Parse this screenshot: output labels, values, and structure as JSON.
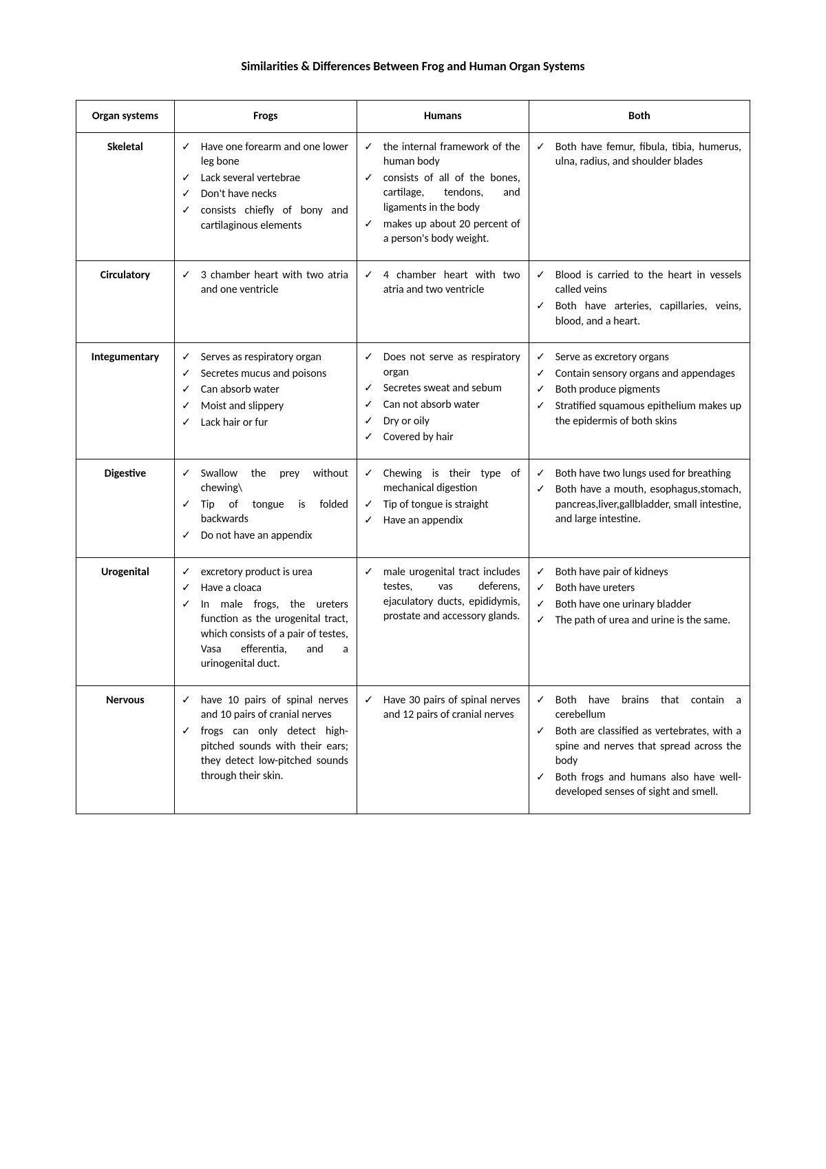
{
  "title": "Similarities & Differences Between Frog and Human Organ Systems",
  "columns": [
    "Organ systems",
    "Frogs",
    "Humans",
    "Both"
  ],
  "check_glyph": "✓",
  "rows": [
    {
      "system": "Skeletal",
      "frogs": [
        "Have one forearm and one lower leg bone",
        "Lack several vertebrae",
        " Don't have necks",
        "consists chiefly of bony and cartilaginous elements"
      ],
      "humans": [
        "the internal framework of the human body",
        "consists of all of the bones, cartilage, tendons, and ligaments in the body",
        "makes up about 20 percent of a person's body weight."
      ],
      "both": [
        "Both have femur, fibula, tibia, humerus, ulna, radius, and shoulder blades"
      ]
    },
    {
      "system": "Circulatory",
      "frogs": [
        "3 chamber heart with two atria and one ventricle"
      ],
      "humans": [
        "4 chamber heart with two atria and two ventricle"
      ],
      "both": [
        "Blood is carried to the heart in vessels called veins",
        "Both have arteries, capillaries, veins, blood, and a heart."
      ]
    },
    {
      "system": "Integumentary",
      "frogs": [
        "Serves as respiratory organ",
        "Secretes mucus and poisons",
        "Can absorb water",
        "Moist and slippery",
        "Lack hair or fur"
      ],
      "humans": [
        "Does not serve as respiratory organ",
        "Secretes sweat and sebum",
        "Can not absorb water",
        "Dry or oily",
        "Covered by hair"
      ],
      "both": [
        "Serve as excretory organs",
        "Contain sensory organs and appendages",
        " Both produce pigments",
        "Stratified squamous epithelium makes up the epidermis of both skins"
      ]
    },
    {
      "system": "Digestive",
      "frogs": [
        "Swallow the prey without chewing\\",
        "Tip of tongue is folded backwards",
        "Do not have an appendix"
      ],
      "humans": [
        "Chewing is their type of mechanical digestion",
        "Tip of tongue is straight",
        "Have an appendix"
      ],
      "both": [
        "Both have two lungs used for breathing",
        "Both have a mouth, esophagus,stomach, pancreas,liver,gallbladder, small intestine, and large intestine."
      ]
    },
    {
      "system": "Urogenital",
      "frogs": [
        "excretory product is urea",
        "Have a cloaca",
        "In male frogs, the ureters function as the urogenital tract, which consists of a pair of testes, Vasa efferentia, and a urinogenital duct."
      ],
      "humans": [
        "male urogenital tract includes testes, vas deferens, ejaculatory ducts, epididymis, prostate and accessory glands."
      ],
      "both": [
        "Both have pair of kidneys",
        "Both have ureters",
        "Both have one urinary bladder",
        "The path of urea and urine is the same."
      ]
    },
    {
      "system": "Nervous",
      "frogs": [
        "have 10 pairs of spinal nerves and 10 pairs of cranial nerves",
        "frogs can only detect high-pitched sounds with their ears; they detect low-pitched sounds through their skin."
      ],
      "humans": [
        "Have 30 pairs of spinal nerves and 12 pairs of cranial nerves"
      ],
      "both": [
        "Both have brains that contain a cerebellum",
        "Both are classified as vertebrates, with a spine and nerves that spread across the body",
        "Both frogs and humans also have well-developed senses of sight and smell."
      ]
    }
  ]
}
